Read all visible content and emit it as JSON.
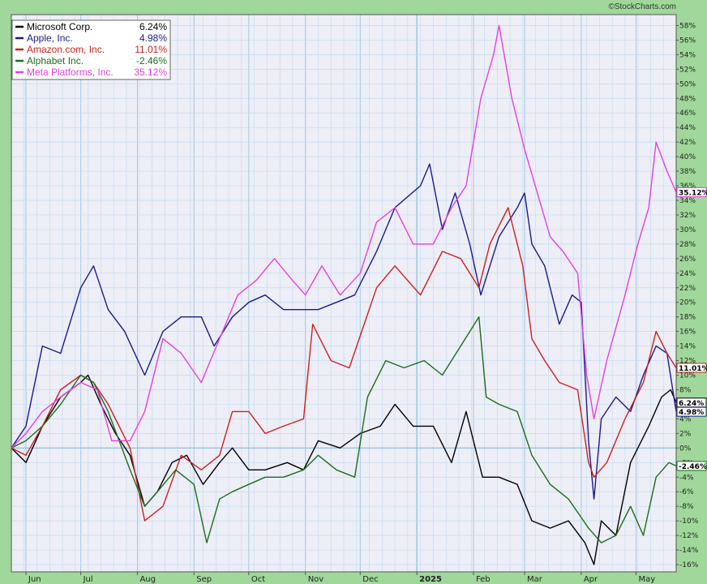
{
  "source_credit": "©StockCharts.com",
  "colors": {
    "background_outer": "#9fd89a",
    "plot_bg": "#eeeef6",
    "grid_minor": "#bfdcf0",
    "grid_major": "#9fc8e6",
    "zero_line": "#88b8e0"
  },
  "chart_data": {
    "type": "line",
    "title": "",
    "xlabel": "",
    "ylabel": "",
    "ylim": [
      -17,
      59.5
    ],
    "y_ticks": [
      58,
      56,
      54,
      52,
      50,
      48,
      46,
      44,
      42,
      40,
      38,
      36,
      34,
      32,
      30,
      28,
      26,
      24,
      22,
      20,
      18,
      16,
      14,
      12,
      10,
      8,
      6,
      4,
      2,
      0,
      -2,
      -4,
      -6,
      -8,
      -10,
      -12,
      -14,
      -16
    ],
    "y_tick_labels": [
      "58%",
      "56%",
      "54%",
      "52%",
      "50%",
      "48%",
      "46%",
      "44%",
      "42%",
      "40%",
      "38%",
      "36%",
      "34%",
      "32%",
      "30%",
      "28%",
      "26%",
      "24%",
      "22%",
      "20%",
      "18%",
      "16%",
      "14%",
      "12%",
      "10%",
      "8%",
      "6%",
      "4%",
      "2%",
      "0%",
      "-2%",
      "-4%",
      "-6%",
      "-8%",
      "-10%",
      "-12%",
      "-14%",
      "-16%"
    ],
    "x_range": [
      "2024-05-24",
      "2025-05-23"
    ],
    "x_ticks": [
      {
        "date": "2024-06-01",
        "label": "Jun",
        "bold": false
      },
      {
        "date": "2024-07-01",
        "label": "Jul",
        "bold": false
      },
      {
        "date": "2024-08-01",
        "label": "Aug",
        "bold": false
      },
      {
        "date": "2024-09-01",
        "label": "Sep",
        "bold": false
      },
      {
        "date": "2024-10-01",
        "label": "Oct",
        "bold": false
      },
      {
        "date": "2024-11-01",
        "label": "Nov",
        "bold": false
      },
      {
        "date": "2024-12-01",
        "label": "Dec",
        "bold": false
      },
      {
        "date": "2025-01-01",
        "label": "2025",
        "bold": true
      },
      {
        "date": "2025-02-01",
        "label": "Feb",
        "bold": false
      },
      {
        "date": "2025-03-01",
        "label": "Mar",
        "bold": false
      },
      {
        "date": "2025-04-01",
        "label": "Apr",
        "bold": false
      },
      {
        "date": "2025-05-01",
        "label": "May",
        "bold": false
      }
    ],
    "legend_position": "top-left",
    "grid": true,
    "series": [
      {
        "name": "Microsoft Corp.",
        "return_label": "6.24%",
        "color": "#000000",
        "points": [
          [
            "2024-05-24",
            0
          ],
          [
            "2024-06-01",
            -2
          ],
          [
            "2024-06-10",
            3
          ],
          [
            "2024-06-20",
            7
          ],
          [
            "2024-07-01",
            9
          ],
          [
            "2024-07-05",
            10
          ],
          [
            "2024-07-12",
            6
          ],
          [
            "2024-07-20",
            2
          ],
          [
            "2024-07-28",
            -1
          ],
          [
            "2024-08-05",
            -8
          ],
          [
            "2024-08-12",
            -6
          ],
          [
            "2024-08-20",
            -2
          ],
          [
            "2024-08-28",
            -1
          ],
          [
            "2024-09-06",
            -5
          ],
          [
            "2024-09-15",
            -2
          ],
          [
            "2024-09-22",
            0
          ],
          [
            "2024-10-01",
            -3
          ],
          [
            "2024-10-10",
            -3
          ],
          [
            "2024-10-22",
            -2
          ],
          [
            "2024-10-31",
            -3
          ],
          [
            "2024-11-08",
            1
          ],
          [
            "2024-11-20",
            0
          ],
          [
            "2024-12-01",
            2
          ],
          [
            "2024-12-12",
            3
          ],
          [
            "2024-12-20",
            6
          ],
          [
            "2024-12-30",
            3
          ],
          [
            "2025-01-10",
            3
          ],
          [
            "2025-01-20",
            -2
          ],
          [
            "2025-01-28",
            5
          ],
          [
            "2025-02-06",
            -4
          ],
          [
            "2025-02-15",
            -4
          ],
          [
            "2025-02-25",
            -5
          ],
          [
            "2025-03-05",
            -10
          ],
          [
            "2025-03-15",
            -11
          ],
          [
            "2025-03-25",
            -10
          ],
          [
            "2025-04-03",
            -13
          ],
          [
            "2025-04-08",
            -16
          ],
          [
            "2025-04-12",
            -10
          ],
          [
            "2025-04-20",
            -12
          ],
          [
            "2025-04-28",
            -2
          ],
          [
            "2025-05-08",
            3
          ],
          [
            "2025-05-15",
            7
          ],
          [
            "2025-05-20",
            8
          ],
          [
            "2025-05-23",
            6.24
          ]
        ]
      },
      {
        "name": "Apple, Inc.",
        "return_label": "4.98%",
        "color": "#1a1a8c",
        "points": [
          [
            "2024-05-24",
            0
          ],
          [
            "2024-06-01",
            3
          ],
          [
            "2024-06-10",
            14
          ],
          [
            "2024-06-20",
            13
          ],
          [
            "2024-07-01",
            22
          ],
          [
            "2024-07-08",
            25
          ],
          [
            "2024-07-16",
            19
          ],
          [
            "2024-07-25",
            16
          ],
          [
            "2024-08-05",
            10
          ],
          [
            "2024-08-15",
            16
          ],
          [
            "2024-08-25",
            18
          ],
          [
            "2024-09-05",
            18
          ],
          [
            "2024-09-12",
            14
          ],
          [
            "2024-09-22",
            18
          ],
          [
            "2024-10-01",
            20
          ],
          [
            "2024-10-10",
            21
          ],
          [
            "2024-10-20",
            19
          ],
          [
            "2024-10-31",
            19
          ],
          [
            "2024-11-08",
            19
          ],
          [
            "2024-11-18",
            20
          ],
          [
            "2024-11-28",
            21
          ],
          [
            "2024-12-10",
            27
          ],
          [
            "2024-12-20",
            33
          ],
          [
            "2025-01-03",
            36
          ],
          [
            "2025-01-08",
            39
          ],
          [
            "2025-01-15",
            30
          ],
          [
            "2025-01-22",
            35
          ],
          [
            "2025-01-30",
            28
          ],
          [
            "2025-02-05",
            21
          ],
          [
            "2025-02-15",
            29
          ],
          [
            "2025-02-25",
            33
          ],
          [
            "2025-03-01",
            35
          ],
          [
            "2025-03-05",
            28
          ],
          [
            "2025-03-12",
            25
          ],
          [
            "2025-03-20",
            17
          ],
          [
            "2025-03-27",
            21
          ],
          [
            "2025-04-01",
            20
          ],
          [
            "2025-04-05",
            1
          ],
          [
            "2025-04-08",
            -7
          ],
          [
            "2025-04-12",
            4
          ],
          [
            "2025-04-20",
            7
          ],
          [
            "2025-04-28",
            5
          ],
          [
            "2025-05-05",
            10
          ],
          [
            "2025-05-12",
            14
          ],
          [
            "2025-05-18",
            13
          ],
          [
            "2025-05-23",
            4.98
          ]
        ]
      },
      {
        "name": "Amazon.com, Inc.",
        "return_label": "11.01%",
        "color": "#cc2020",
        "points": [
          [
            "2024-05-24",
            0
          ],
          [
            "2024-06-01",
            -1
          ],
          [
            "2024-06-10",
            3
          ],
          [
            "2024-06-20",
            8
          ],
          [
            "2024-07-01",
            10
          ],
          [
            "2024-07-08",
            9
          ],
          [
            "2024-07-16",
            6
          ],
          [
            "2024-07-28",
            0
          ],
          [
            "2024-08-05",
            -10
          ],
          [
            "2024-08-15",
            -8
          ],
          [
            "2024-08-25",
            -1
          ],
          [
            "2024-09-05",
            -3
          ],
          [
            "2024-09-15",
            -1
          ],
          [
            "2024-09-22",
            5
          ],
          [
            "2024-10-01",
            5
          ],
          [
            "2024-10-10",
            2
          ],
          [
            "2024-10-20",
            3
          ],
          [
            "2024-10-31",
            4
          ],
          [
            "2024-11-05",
            17
          ],
          [
            "2024-11-15",
            12
          ],
          [
            "2024-11-25",
            11
          ],
          [
            "2024-12-10",
            22
          ],
          [
            "2024-12-20",
            25
          ],
          [
            "2025-01-03",
            21
          ],
          [
            "2025-01-15",
            27
          ],
          [
            "2025-01-25",
            26
          ],
          [
            "2025-02-04",
            22
          ],
          [
            "2025-02-10",
            28
          ],
          [
            "2025-02-20",
            33
          ],
          [
            "2025-02-28",
            25
          ],
          [
            "2025-03-05",
            15
          ],
          [
            "2025-03-12",
            12
          ],
          [
            "2025-03-20",
            9
          ],
          [
            "2025-03-30",
            8
          ],
          [
            "2025-04-05",
            -2
          ],
          [
            "2025-04-08",
            -4
          ],
          [
            "2025-04-15",
            -2
          ],
          [
            "2025-04-25",
            4
          ],
          [
            "2025-05-05",
            9
          ],
          [
            "2025-05-12",
            16
          ],
          [
            "2025-05-18",
            13
          ],
          [
            "2025-05-23",
            11.01
          ]
        ]
      },
      {
        "name": "Alphabet Inc.",
        "return_label": "-2.46%",
        "color": "#1a6e1a",
        "points": [
          [
            "2024-05-24",
            0
          ],
          [
            "2024-06-01",
            1
          ],
          [
            "2024-06-10",
            3
          ],
          [
            "2024-06-20",
            6
          ],
          [
            "2024-07-01",
            10
          ],
          [
            "2024-07-08",
            9
          ],
          [
            "2024-07-16",
            5
          ],
          [
            "2024-07-28",
            -3
          ],
          [
            "2024-08-05",
            -8
          ],
          [
            "2024-08-12",
            -6
          ],
          [
            "2024-08-22",
            -3
          ],
          [
            "2024-09-01",
            -5
          ],
          [
            "2024-09-08",
            -13
          ],
          [
            "2024-09-15",
            -7
          ],
          [
            "2024-09-22",
            -6
          ],
          [
            "2024-10-01",
            -5
          ],
          [
            "2024-10-10",
            -4
          ],
          [
            "2024-10-20",
            -4
          ],
          [
            "2024-10-31",
            -3
          ],
          [
            "2024-11-08",
            -1
          ],
          [
            "2024-11-18",
            -3
          ],
          [
            "2024-11-28",
            -4
          ],
          [
            "2024-12-05",
            7
          ],
          [
            "2024-12-15",
            12
          ],
          [
            "2024-12-25",
            11
          ],
          [
            "2025-01-05",
            12
          ],
          [
            "2025-01-15",
            10
          ],
          [
            "2025-01-25",
            14
          ],
          [
            "2025-02-04",
            18
          ],
          [
            "2025-02-08",
            7
          ],
          [
            "2025-02-15",
            6
          ],
          [
            "2025-02-25",
            5
          ],
          [
            "2025-03-05",
            -1
          ],
          [
            "2025-03-15",
            -5
          ],
          [
            "2025-03-25",
            -7
          ],
          [
            "2025-04-05",
            -11
          ],
          [
            "2025-04-12",
            -13
          ],
          [
            "2025-04-20",
            -12
          ],
          [
            "2025-04-28",
            -8
          ],
          [
            "2025-05-05",
            -12
          ],
          [
            "2025-05-12",
            -4
          ],
          [
            "2025-05-19",
            -2
          ],
          [
            "2025-05-23",
            -2.46
          ]
        ]
      },
      {
        "name": "Meta Platforms, Inc.",
        "return_label": "35.12%",
        "color": "#e63fe0",
        "points": [
          [
            "2024-05-24",
            0
          ],
          [
            "2024-06-01",
            2
          ],
          [
            "2024-06-10",
            5
          ],
          [
            "2024-06-20",
            7
          ],
          [
            "2024-07-01",
            9
          ],
          [
            "2024-07-10",
            8
          ],
          [
            "2024-07-18",
            1
          ],
          [
            "2024-07-28",
            1
          ],
          [
            "2024-08-05",
            5
          ],
          [
            "2024-08-15",
            15
          ],
          [
            "2024-08-25",
            13
          ],
          [
            "2024-09-05",
            9
          ],
          [
            "2024-09-15",
            15
          ],
          [
            "2024-09-25",
            21
          ],
          [
            "2024-10-05",
            23
          ],
          [
            "2024-10-15",
            26
          ],
          [
            "2024-10-25",
            23
          ],
          [
            "2024-11-01",
            21
          ],
          [
            "2024-11-10",
            25
          ],
          [
            "2024-11-20",
            21
          ],
          [
            "2024-12-01",
            24
          ],
          [
            "2024-12-10",
            31
          ],
          [
            "2024-12-20",
            33
          ],
          [
            "2024-12-30",
            28
          ],
          [
            "2025-01-10",
            28
          ],
          [
            "2025-01-20",
            33
          ],
          [
            "2025-01-28",
            36
          ],
          [
            "2025-02-05",
            48
          ],
          [
            "2025-02-12",
            54
          ],
          [
            "2025-02-15",
            58
          ],
          [
            "2025-02-22",
            48
          ],
          [
            "2025-03-01",
            41
          ],
          [
            "2025-03-08",
            35
          ],
          [
            "2025-03-15",
            29
          ],
          [
            "2025-03-22",
            27
          ],
          [
            "2025-03-30",
            24
          ],
          [
            "2025-04-04",
            10
          ],
          [
            "2025-04-08",
            4
          ],
          [
            "2025-04-15",
            12
          ],
          [
            "2025-04-25",
            21
          ],
          [
            "2025-05-02",
            28
          ],
          [
            "2025-05-08",
            33
          ],
          [
            "2025-05-12",
            42
          ],
          [
            "2025-05-18",
            38
          ],
          [
            "2025-05-23",
            35.12
          ]
        ]
      }
    ]
  }
}
